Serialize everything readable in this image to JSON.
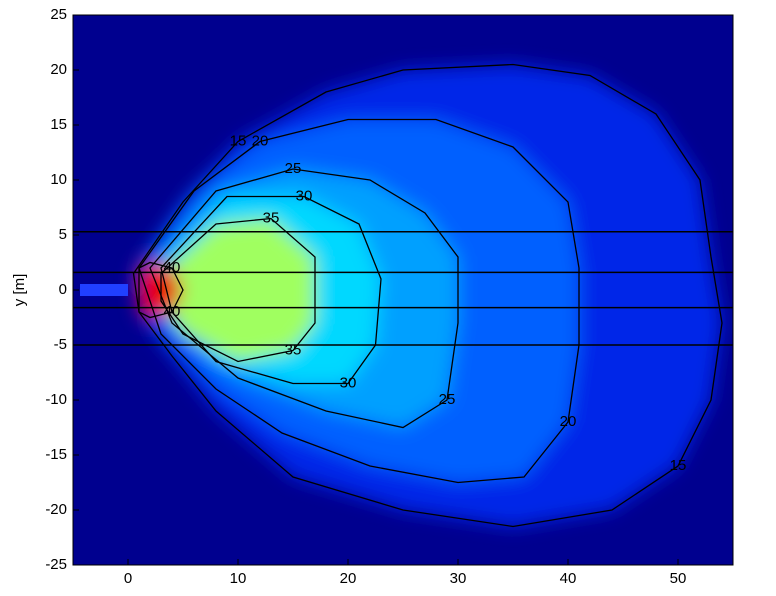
{
  "chart_data": {
    "type": "contour",
    "y_label": "y [m]",
    "xlim": [
      -5,
      55
    ],
    "ylim": [
      -25,
      25
    ],
    "xticks": [
      0,
      10,
      20,
      30,
      40,
      50
    ],
    "yticks": [
      -25,
      -20,
      -15,
      -10,
      -5,
      0,
      5,
      10,
      15,
      20,
      25
    ],
    "background": "#00008f",
    "hlines": [
      5.3,
      1.6,
      -1.6,
      -5
    ],
    "contours": [
      {
        "level": 15,
        "color": "#0028e8",
        "x": [
          0.5,
          5,
          10,
          18,
          25,
          35,
          42,
          48,
          52,
          53,
          54,
          53,
          50,
          44,
          35,
          25,
          15,
          8,
          4,
          1
        ],
        "y": [
          1.5,
          8,
          13.5,
          18,
          20,
          20.5,
          19.5,
          16,
          10,
          3,
          -3,
          -10,
          -16,
          -20,
          -21.5,
          -20,
          -17,
          -11,
          -6,
          -2
        ]
      },
      {
        "level": 20,
        "color": "#0060ff",
        "x": [
          1,
          6,
          12,
          20,
          28,
          35,
          40,
          41,
          41,
          40,
          36,
          30,
          22,
          14,
          8,
          3
        ],
        "y": [
          2,
          9,
          13.5,
          15.5,
          15.5,
          13,
          8,
          2,
          -5,
          -12,
          -17,
          -17.5,
          -16,
          -13,
          -9,
          -4
        ]
      },
      {
        "level": 25,
        "color": "#00a0ff",
        "x": [
          2,
          8,
          15,
          22,
          27,
          30,
          30,
          29,
          25,
          18,
          10,
          4
        ],
        "y": [
          2,
          9,
          11,
          10,
          7,
          3,
          -3,
          -10,
          -12.5,
          -11,
          -8,
          -3
        ]
      },
      {
        "level": 30,
        "color": "#00d8ff",
        "x": [
          3,
          9,
          16,
          21,
          23,
          22.5,
          20,
          15,
          8,
          4
        ],
        "y": [
          2,
          8.5,
          8.5,
          6,
          1,
          -5,
          -8.5,
          -8.5,
          -6.5,
          -2
        ]
      },
      {
        "level": 35,
        "color": "#a0ff60",
        "x": [
          3,
          8,
          13,
          17,
          17,
          15,
          10,
          5,
          3
        ],
        "y": [
          1.5,
          6,
          6.5,
          3,
          -3,
          -5.5,
          -6.5,
          -4,
          -1
        ]
      },
      {
        "level": 40,
        "color": "#e80000",
        "x": [
          1,
          2,
          4,
          5,
          4,
          2,
          1
        ],
        "y": [
          2,
          2.5,
          2,
          0,
          -2,
          -2.5,
          -2
        ]
      }
    ]
  }
}
